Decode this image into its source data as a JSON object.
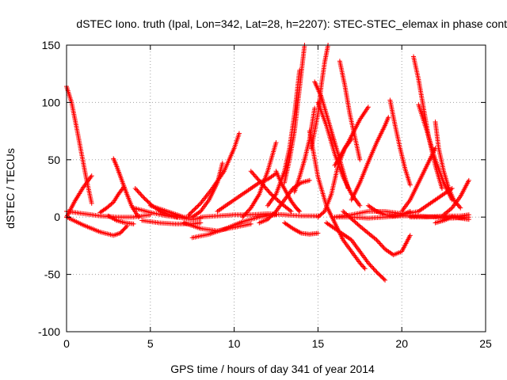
{
  "chart_data": {
    "type": "scatter",
    "title": "dSTEC Iono. truth (Ipal, Lon=342, Lat=28, h=2207): STEC-STEC_elemax in phase cont",
    "xlabel": "GPS time / hours of day 341 of year 2014",
    "ylabel": "dSTEC  / TECUs",
    "xlim": [
      0,
      25
    ],
    "ylim": [
      -100,
      150
    ],
    "x_ticks": [
      0,
      5,
      10,
      15,
      20,
      25
    ],
    "y_ticks": [
      -100,
      -50,
      0,
      50,
      100,
      150
    ],
    "x_tick_labels": [
      "0",
      "5",
      "10",
      "15",
      "20",
      "25"
    ],
    "y_tick_labels": [
      "-100",
      "-50",
      "0",
      "50",
      "100",
      "150"
    ],
    "grid": true,
    "marker": "plus",
    "color": "#ff0000",
    "series": [
      {
        "x": [
          0.0,
          0.3,
          0.6,
          0.9,
          1.2,
          1.5
        ],
        "y": [
          114,
          100,
          78,
          55,
          32,
          12
        ]
      },
      {
        "x": [
          0.0,
          0.5,
          1.0,
          1.5
        ],
        "y": [
          0,
          14,
          26,
          36
        ]
      },
      {
        "x": [
          0.0,
          1.0,
          2.0,
          2.8,
          3.2,
          3.6
        ],
        "y": [
          0,
          -7,
          -13,
          -16,
          -14,
          -8
        ]
      },
      {
        "x": [
          0.0,
          1.0,
          2.0,
          3.0,
          4.0,
          5.0
        ],
        "y": [
          5,
          3,
          1,
          0,
          0,
          2
        ]
      },
      {
        "x": [
          2.8,
          3.0,
          3.3,
          3.6,
          3.9,
          4.3
        ],
        "y": [
          51,
          44,
          32,
          20,
          9,
          0
        ]
      },
      {
        "x": [
          2.0,
          2.4,
          2.8,
          3.1,
          3.4
        ],
        "y": [
          4,
          8,
          13,
          20,
          26
        ]
      },
      {
        "x": [
          2.5,
          3.0,
          3.5,
          4.0
        ],
        "y": [
          1,
          -3,
          -5,
          -6
        ]
      },
      {
        "x": [
          4.1,
          4.6,
          5.1,
          5.6,
          6.1,
          6.6
        ],
        "y": [
          25,
          17,
          10,
          5,
          2,
          0
        ]
      },
      {
        "x": [
          4.0,
          5.0,
          6.0,
          7.0,
          7.5,
          8.0
        ],
        "y": [
          8,
          4,
          1,
          -1,
          -2,
          -1
        ]
      },
      {
        "x": [
          4.5,
          5.5,
          6.5,
          7.5,
          8.0
        ],
        "y": [
          -3,
          -5,
          -6,
          -6,
          -5
        ]
      },
      {
        "x": [
          5.0,
          6.0,
          7.0,
          7.5,
          8.0,
          8.5,
          9.0,
          9.3
        ],
        "y": [
          10,
          5,
          0,
          0,
          5,
          15,
          30,
          47
        ]
      },
      {
        "x": [
          7.3,
          8.0,
          8.7,
          9.4,
          10.0,
          10.3
        ],
        "y": [
          2,
          12,
          25,
          40,
          60,
          73
        ]
      },
      {
        "x": [
          7.5,
          8.5,
          9.5,
          10.5,
          11.5,
          12.5
        ],
        "y": [
          -18,
          -15,
          -10,
          -4,
          0,
          2
        ]
      },
      {
        "x": [
          7.0,
          8.0,
          9.0,
          10.0,
          11.0
        ],
        "y": [
          -5,
          -10,
          -12,
          -9,
          -6
        ]
      },
      {
        "x": [
          9.0,
          10.0,
          11.0,
          11.5,
          12.0,
          12.5
        ],
        "y": [
          5,
          15,
          25,
          30,
          33,
          38
        ]
      },
      {
        "x": [
          10.5,
          11.0,
          11.5,
          12.0,
          12.5
        ],
        "y": [
          0,
          8,
          20,
          40,
          65
        ]
      },
      {
        "x": [
          11.0,
          11.6,
          12.2,
          12.8,
          13.4
        ],
        "y": [
          40,
          30,
          20,
          12,
          5
        ]
      },
      {
        "x": [
          12.5,
          12.8,
          13.1,
          13.4,
          13.7,
          13.9
        ],
        "y": [
          40,
          30,
          22,
          14,
          8,
          5
        ]
      },
      {
        "x": [
          11.5,
          12.0,
          12.5,
          13.0,
          13.5,
          14.0,
          14.5
        ],
        "y": [
          -5,
          -2,
          5,
          15,
          25,
          30,
          32
        ]
      },
      {
        "x": [
          12.0,
          12.5,
          13.0,
          13.3,
          13.6,
          13.9
        ],
        "y": [
          10,
          20,
          40,
          60,
          90,
          128
        ]
      },
      {
        "x": [
          13.0,
          13.3,
          13.6,
          13.8,
          14.0,
          14.2
        ],
        "y": [
          30,
          50,
          75,
          100,
          125,
          150
        ]
      },
      {
        "x": [
          13.0,
          13.5,
          14.0,
          14.5,
          15.0
        ],
        "y": [
          -5,
          -10,
          -14,
          -15,
          -14
        ]
      },
      {
        "x": [
          13.6,
          13.9,
          14.2,
          14.5,
          14.8
        ],
        "y": [
          22,
          35,
          50,
          68,
          95
        ]
      },
      {
        "x": [
          14.5,
          15.0,
          15.5,
          16.0,
          16.5,
          17.0,
          17.5,
          17.8
        ],
        "y": [
          75,
          35,
          10,
          -5,
          -20,
          -30,
          -40,
          -45
        ]
      },
      {
        "x": [
          14.8,
          15.2,
          15.6,
          16.0,
          16.4,
          16.8
        ],
        "y": [
          118,
          105,
          85,
          65,
          45,
          25
        ]
      },
      {
        "x": [
          15.0,
          15.5,
          16.0,
          16.5,
          17.0,
          17.5
        ],
        "y": [
          100,
          80,
          55,
          35,
          20,
          10
        ]
      },
      {
        "x": [
          14.6,
          15.0,
          15.2,
          15.4,
          15.6
        ],
        "y": [
          60,
          90,
          115,
          135,
          150
        ]
      },
      {
        "x": [
          15.0,
          15.4,
          15.8,
          16.2,
          16.6,
          17.0
        ],
        "y": [
          0,
          5,
          20,
          45,
          60,
          68
        ]
      },
      {
        "x": [
          15.5,
          16.0,
          16.5,
          17.0,
          17.5,
          18.0,
          18.5,
          19.0
        ],
        "y": [
          -5,
          -10,
          -15,
          -20,
          -30,
          -40,
          -48,
          -55
        ]
      },
      {
        "x": [
          16.0,
          16.8,
          17.5,
          18.0
        ],
        "y": [
          45,
          65,
          85,
          96
        ]
      },
      {
        "x": [
          16.3,
          16.6,
          16.9,
          17.2,
          17.5
        ],
        "y": [
          136,
          115,
          90,
          70,
          50
        ]
      },
      {
        "x": [
          16.5,
          17.5,
          18.5,
          19.0,
          19.5,
          20.0,
          20.5
        ],
        "y": [
          5,
          -8,
          -20,
          -28,
          -33,
          -30,
          -16
        ]
      },
      {
        "x": [
          16.0,
          17.0,
          18.0,
          19.0,
          20.0
        ],
        "y": [
          0,
          2,
          5,
          5,
          3
        ]
      },
      {
        "x": [
          17.0,
          17.5,
          18.0,
          18.5,
          19.0,
          19.2
        ],
        "y": [
          15,
          30,
          48,
          65,
          80,
          87
        ]
      },
      {
        "x": [
          18.0,
          18.5,
          19.0,
          19.5,
          20.0,
          20.5
        ],
        "y": [
          10,
          5,
          2,
          1,
          2,
          5
        ]
      },
      {
        "x": [
          19.3,
          19.6,
          19.9,
          20.2,
          20.5
        ],
        "y": [
          102,
          80,
          60,
          42,
          28
        ]
      },
      {
        "x": [
          20.0,
          20.5,
          21.0,
          21.5,
          22.0
        ],
        "y": [
          5,
          15,
          30,
          45,
          60
        ]
      },
      {
        "x": [
          20.7,
          21.0,
          21.3,
          21.6,
          22.0,
          22.4
        ],
        "y": [
          140,
          120,
          95,
          70,
          45,
          25
        ]
      },
      {
        "x": [
          21.0,
          21.5,
          22.0,
          22.5,
          23.0
        ],
        "y": [
          98,
          75,
          50,
          30,
          15
        ]
      },
      {
        "x": [
          20.0,
          21.0,
          21.5,
          22.0,
          22.5,
          23.0
        ],
        "y": [
          2,
          5,
          10,
          15,
          20,
          25
        ]
      },
      {
        "x": [
          22.0,
          22.2,
          22.5,
          22.8,
          23.1,
          23.5
        ],
        "y": [
          83,
          60,
          40,
          25,
          15,
          8
        ]
      },
      {
        "x": [
          20.5,
          21.5,
          22.5,
          23.5,
          24.0
        ],
        "y": [
          0,
          0,
          1,
          1,
          2
        ]
      },
      {
        "x": [
          22.5,
          23.0,
          23.5,
          24.0
        ],
        "y": [
          2,
          8,
          18,
          32
        ]
      },
      {
        "x": [
          22.0,
          22.5,
          23.0,
          23.5,
          24.0
        ],
        "y": [
          -5,
          -3,
          0,
          -1,
          -2
        ]
      },
      {
        "x": [
          8.0,
          9.0,
          10.0,
          11.0,
          12.0,
          13.0,
          14.0,
          15.0
        ],
        "y": [
          0,
          1,
          2,
          2,
          3,
          2,
          1,
          1
        ]
      },
      {
        "x": [
          16.0,
          17.0,
          18.0,
          19.0,
          20.0,
          21.0,
          22.0,
          23.0,
          24.0
        ],
        "y": [
          0,
          0,
          -1,
          0,
          1,
          1,
          0,
          -1,
          0
        ]
      }
    ]
  }
}
